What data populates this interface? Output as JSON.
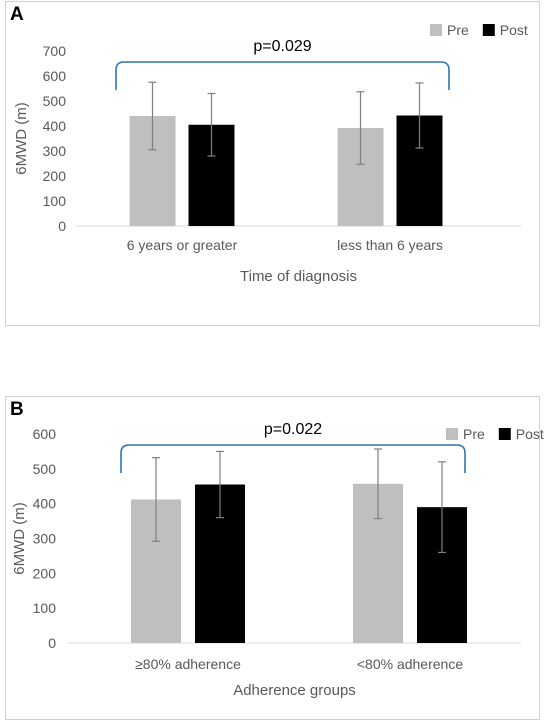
{
  "chart_data": [
    {
      "panel_label": "A",
      "type": "bar",
      "categories": [
        "6 years or greater",
        "less than 6 years"
      ],
      "series": [
        {
          "name": "Pre",
          "color": "#bfbfbf",
          "values": [
            440,
            392
          ],
          "error": [
            135,
            145
          ]
        },
        {
          "name": "Post",
          "color": "#000000",
          "values": [
            405,
            442
          ],
          "error": [
            125,
            130
          ]
        }
      ],
      "xlabel": "Time of diagnosis",
      "ylabel": "6MWD  (m)",
      "ylim": [
        0,
        700
      ],
      "yticks": [
        0,
        100,
        200,
        300,
        400,
        500,
        600,
        700
      ],
      "annotation": "p=0.029",
      "bracket_color": "#2e75b6",
      "legend_position": "top-right",
      "grid": false
    },
    {
      "panel_label": "B",
      "type": "bar",
      "categories": [
        "≥80% adherence",
        "<80% adherence"
      ],
      "series": [
        {
          "name": "Pre",
          "color": "#bfbfbf",
          "values": [
            412,
            457
          ],
          "error": [
            120,
            100
          ]
        },
        {
          "name": "Post",
          "color": "#000000",
          "values": [
            455,
            390
          ],
          "error": [
            95,
            130
          ]
        }
      ],
      "xlabel": "Adherence groups",
      "ylabel": "6MWD  (m)",
      "ylim": [
        0,
        600
      ],
      "yticks": [
        0,
        100,
        200,
        300,
        400,
        500,
        600
      ],
      "annotation": "p=0.022",
      "bracket_color": "#2e75b6",
      "legend_position": "top-right",
      "grid": false
    }
  ]
}
